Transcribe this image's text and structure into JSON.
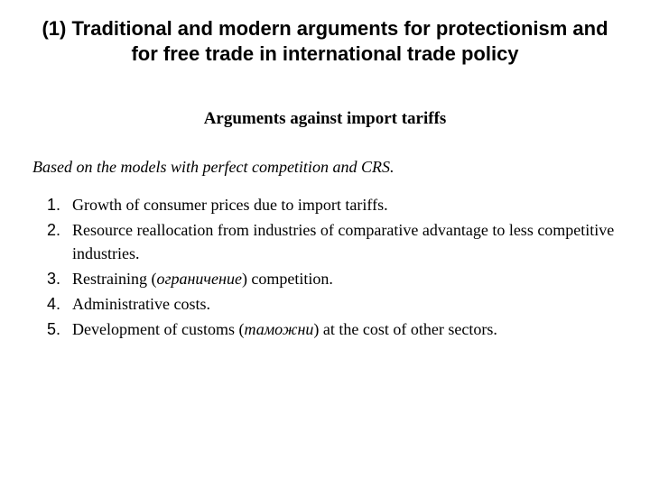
{
  "title": "(1) Traditional and modern arguments for protectionism and for free trade in international trade policy",
  "subtitle": "Arguments against import tariffs",
  "intro": "Based on the models with perfect competition and CRS.",
  "items": {
    "i1": "Growth of consumer prices due to import tariffs.",
    "i2": "Resource reallocation from industries of comparative advantage to less competitive industries.",
    "i3_a": "Restraining  (",
    "i3_b": "ограничение",
    "i3_c": ") competition.",
    "i4": "Administrative costs.",
    "i5_a": "Development of customs (",
    "i5_b": "таможни",
    "i5_c": ") at the cost of other sectors."
  },
  "colors": {
    "background": "#ffffff",
    "text": "#000000"
  },
  "typography": {
    "title_font": "Arial",
    "title_size_pt": 22,
    "body_font": "Times New Roman",
    "body_size_pt": 18,
    "subtitle_size_pt": 19
  }
}
